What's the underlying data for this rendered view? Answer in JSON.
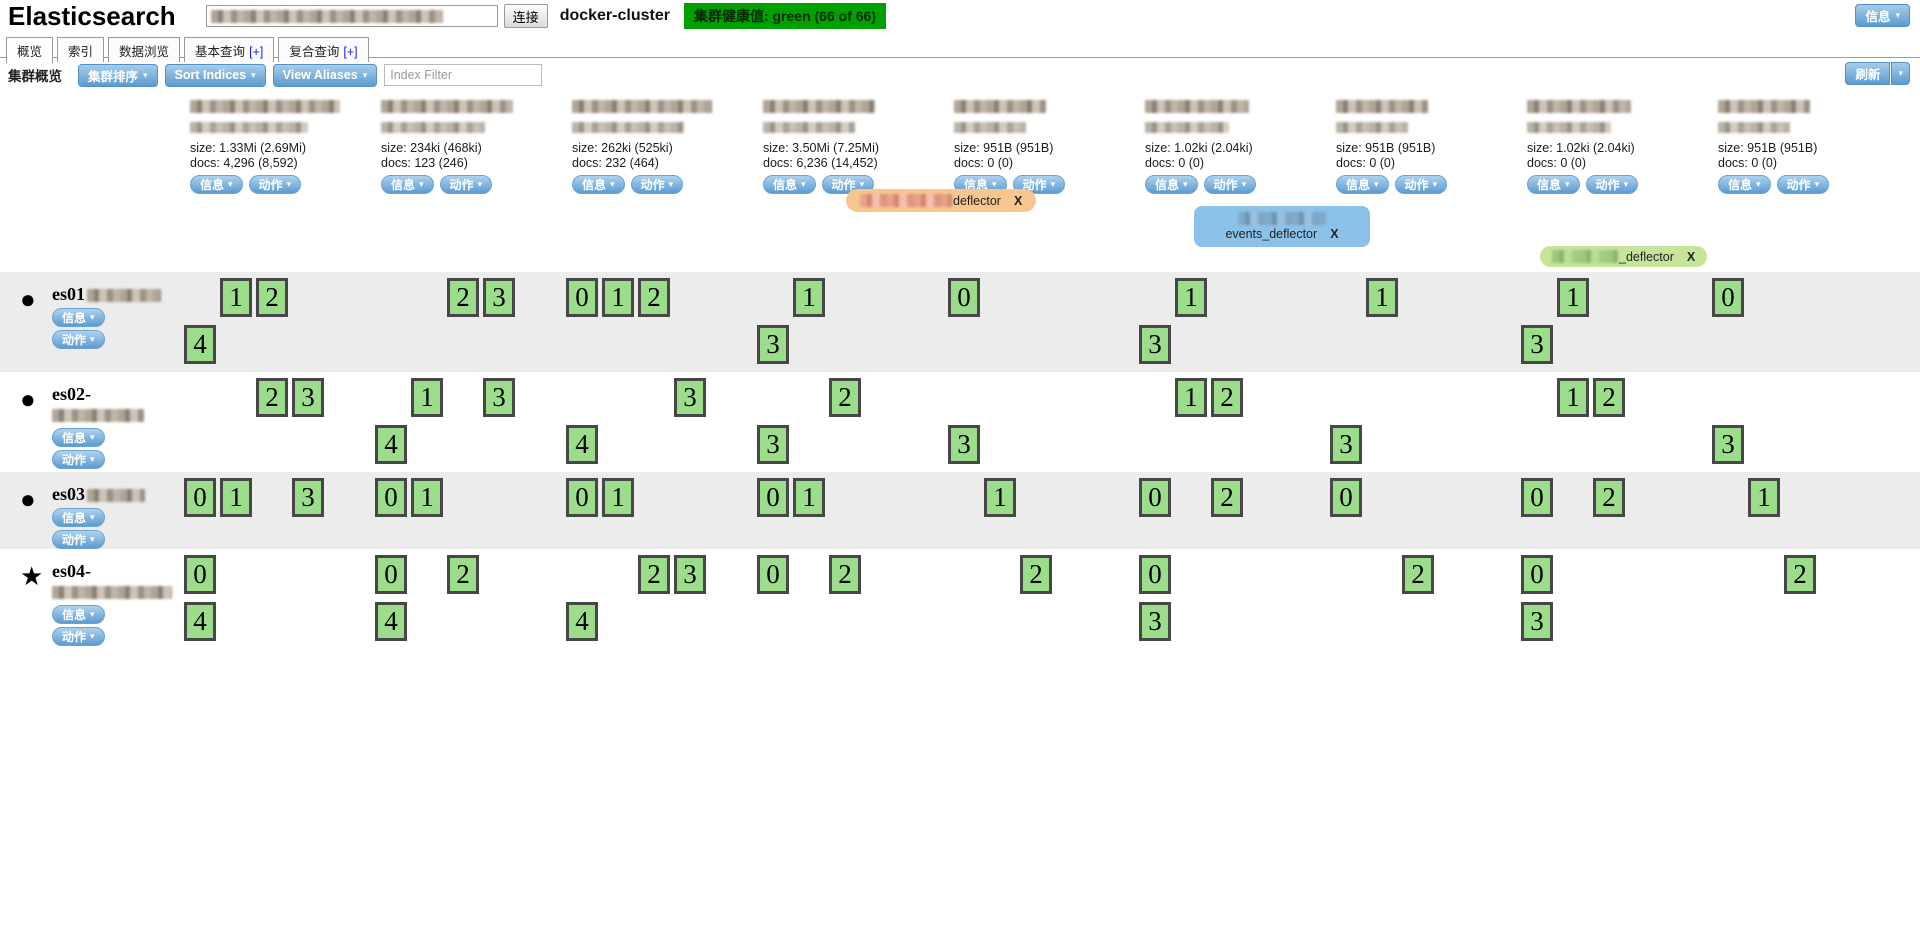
{
  "colors": {
    "health_green": "#00a000",
    "shard_green": "#9cdd8c",
    "alias_orange": "#f7c78f",
    "alias_blue": "#8cc2ea",
    "alias_green": "#c7e49b",
    "button_blue": "#5b9bd0"
  },
  "icons": {
    "caret": "▾",
    "node_circle": "●",
    "node_star": "★",
    "alias_close": "X"
  },
  "header": {
    "app_title": "Elasticsearch",
    "connect_input_blurred": true,
    "connect_button": "连接",
    "cluster_name": "docker-cluster",
    "health_badge": "集群健康值: green (66 of 66)",
    "info_button": "信息"
  },
  "tabs": [
    {
      "label": "概览",
      "plus": "",
      "active": true
    },
    {
      "label": "索引",
      "plus": "",
      "active": false
    },
    {
      "label": "数据浏览",
      "plus": "",
      "active": false
    },
    {
      "label": "基本查询",
      "plus": "[+]",
      "active": false
    },
    {
      "label": "复合查询",
      "plus": "[+]",
      "active": false
    }
  ],
  "toolbar": {
    "section_title": "集群概览",
    "cluster_sort_button": "集群排序",
    "sort_indices_button": "Sort Indices",
    "view_aliases_button": "View Aliases",
    "index_filter_placeholder": "Index Filter",
    "refresh_button": "刷新"
  },
  "labels": {
    "info": "信息",
    "action": "动作"
  },
  "indices": [
    {
      "name_blurred": true,
      "blur_widths": [
        150,
        118
      ],
      "size": "size: 1.33Mi (2.69Mi)",
      "docs": "docs: 4,296 (8,592)",
      "slots_per_row": 4
    },
    {
      "name_blurred": true,
      "blur_widths": [
        132,
        104
      ],
      "size": "size: 234ki (468ki)",
      "docs": "docs: 123 (246)",
      "slots_per_row": 4
    },
    {
      "name_blurred": true,
      "blur_widths": [
        140,
        112
      ],
      "size": "size: 262ki (525ki)",
      "docs": "docs: 232 (464)",
      "slots_per_row": 4
    },
    {
      "name_blurred": true,
      "blur_widths": [
        112,
        92
      ],
      "size": "size: 3.50Mi (7.25Mi)",
      "docs": "docs: 6,236 (14,452)",
      "slots_per_row": 3
    },
    {
      "name_blurred": true,
      "blur_widths": [
        92,
        72
      ],
      "size": "size: 951B (951B)",
      "docs": "docs: 0 (0)",
      "slots_per_row": 3
    },
    {
      "name_blurred": true,
      "blur_widths": [
        104,
        84
      ],
      "size": "size: 1.02ki (2.04ki)",
      "docs": "docs: 0 (0)",
      "slots_per_row": 3
    },
    {
      "name_blurred": true,
      "blur_widths": [
        92,
        72
      ],
      "size": "size: 951B (951B)",
      "docs": "docs: 0 (0)",
      "slots_per_row": 3
    },
    {
      "name_blurred": true,
      "blur_widths": [
        104,
        84
      ],
      "size": "size: 1.02ki (2.04ki)",
      "docs": "docs: 0 (0)",
      "slots_per_row": 3
    },
    {
      "name_blurred": true,
      "blur_widths": [
        92,
        72
      ],
      "size": "size: 951B (951B)",
      "docs": "docs: 0 (0)",
      "slots_per_row": 3
    }
  ],
  "aliases": [
    {
      "style": "orange",
      "prefix_blurred": true,
      "blur_width": 92,
      "label": "deflector",
      "close": "X"
    },
    {
      "style": "blue",
      "prefix_blurred": true,
      "blur_width": 88,
      "label": "events_deflector",
      "close": "X"
    },
    {
      "style": "green",
      "prefix_blurred": true,
      "blur_width": 66,
      "label": "_deflector",
      "close": "X"
    }
  ],
  "nodes": [
    {
      "name": "es01",
      "icon": "circle",
      "suffix_blurred": true,
      "blur_width": 74,
      "two_line_name": false,
      "shards": [
        [
          1,
          2,
          4
        ],
        [
          2,
          3
        ],
        [
          0,
          1,
          2
        ],
        [
          1,
          3
        ],
        [
          0
        ],
        [
          1,
          3
        ],
        [
          1
        ],
        [
          1,
          3
        ],
        [
          0
        ]
      ]
    },
    {
      "name": "es02-",
      "icon": "circle",
      "suffix_blurred": true,
      "blur_width": 92,
      "two_line_name": true,
      "shards": [
        [
          2,
          3
        ],
        [
          1,
          3,
          4
        ],
        [
          3,
          4
        ],
        [
          2,
          3
        ],
        [
          3
        ],
        [
          1,
          2
        ],
        [
          3
        ],
        [
          1,
          2
        ],
        [
          3
        ]
      ]
    },
    {
      "name": "es03",
      "icon": "circle",
      "suffix_blurred": true,
      "blur_width": 58,
      "two_line_name": false,
      "shards": [
        [
          0,
          1,
          3
        ],
        [
          0,
          1
        ],
        [
          0,
          1
        ],
        [
          0,
          1
        ],
        [
          1
        ],
        [
          0,
          2
        ],
        [
          0
        ],
        [
          0,
          2
        ],
        [
          1
        ]
      ]
    },
    {
      "name": "es04-",
      "icon": "star",
      "suffix_blurred": true,
      "blur_width": 120,
      "two_line_name": true,
      "shards": [
        [
          0,
          4
        ],
        [
          0,
          2,
          4
        ],
        [
          2,
          3,
          4
        ],
        [
          0,
          2
        ],
        [
          2
        ],
        [
          0,
          3
        ],
        [
          2
        ],
        [
          0,
          3
        ],
        [
          2
        ]
      ]
    }
  ]
}
